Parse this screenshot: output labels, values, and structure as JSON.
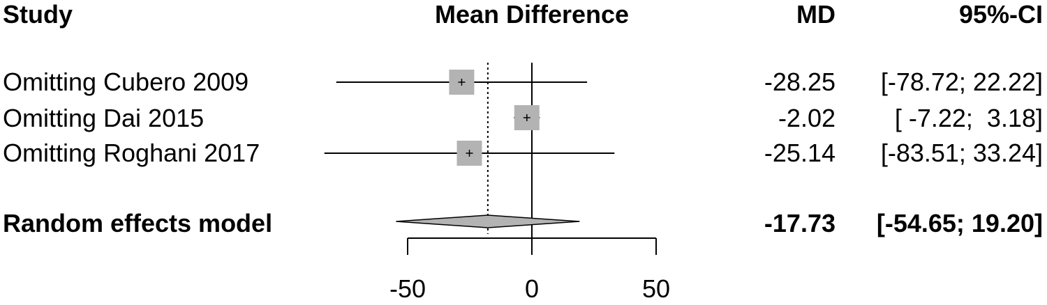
{
  "chart_data": {
    "type": "forest",
    "headers": {
      "study": "Study",
      "plot": "Mean Difference",
      "md": "MD",
      "ci": "95%-CI"
    },
    "studies": [
      {
        "label": "Omitting Cubero 2009",
        "md": -28.25,
        "lower": -78.72,
        "upper": 22.22,
        "md_text": "-28.25",
        "ci_text": "[-78.72; 22.22]"
      },
      {
        "label": "Omitting Dai 2015",
        "md": -2.02,
        "lower": -7.22,
        "upper": 3.18,
        "md_text": "-2.02",
        "ci_text": "[ -7.22;  3.18]"
      },
      {
        "label": "Omitting Roghani 2017",
        "md": -25.14,
        "lower": -83.51,
        "upper": 33.24,
        "md_text": "-25.14",
        "ci_text": "[-83.51; 33.24]"
      }
    ],
    "pooled": {
      "label": "Random effects model",
      "md": -17.73,
      "lower": -54.65,
      "upper": 19.2,
      "md_text": "-17.73",
      "ci_text": "[-54.65; 19.20]"
    },
    "x_axis": {
      "ticks": [
        -50,
        0,
        50
      ],
      "tick_labels": [
        "-50",
        "0",
        "50"
      ],
      "null_value": 0
    },
    "colors": {
      "marker": "#b3b3b3",
      "line": "#000000"
    }
  }
}
